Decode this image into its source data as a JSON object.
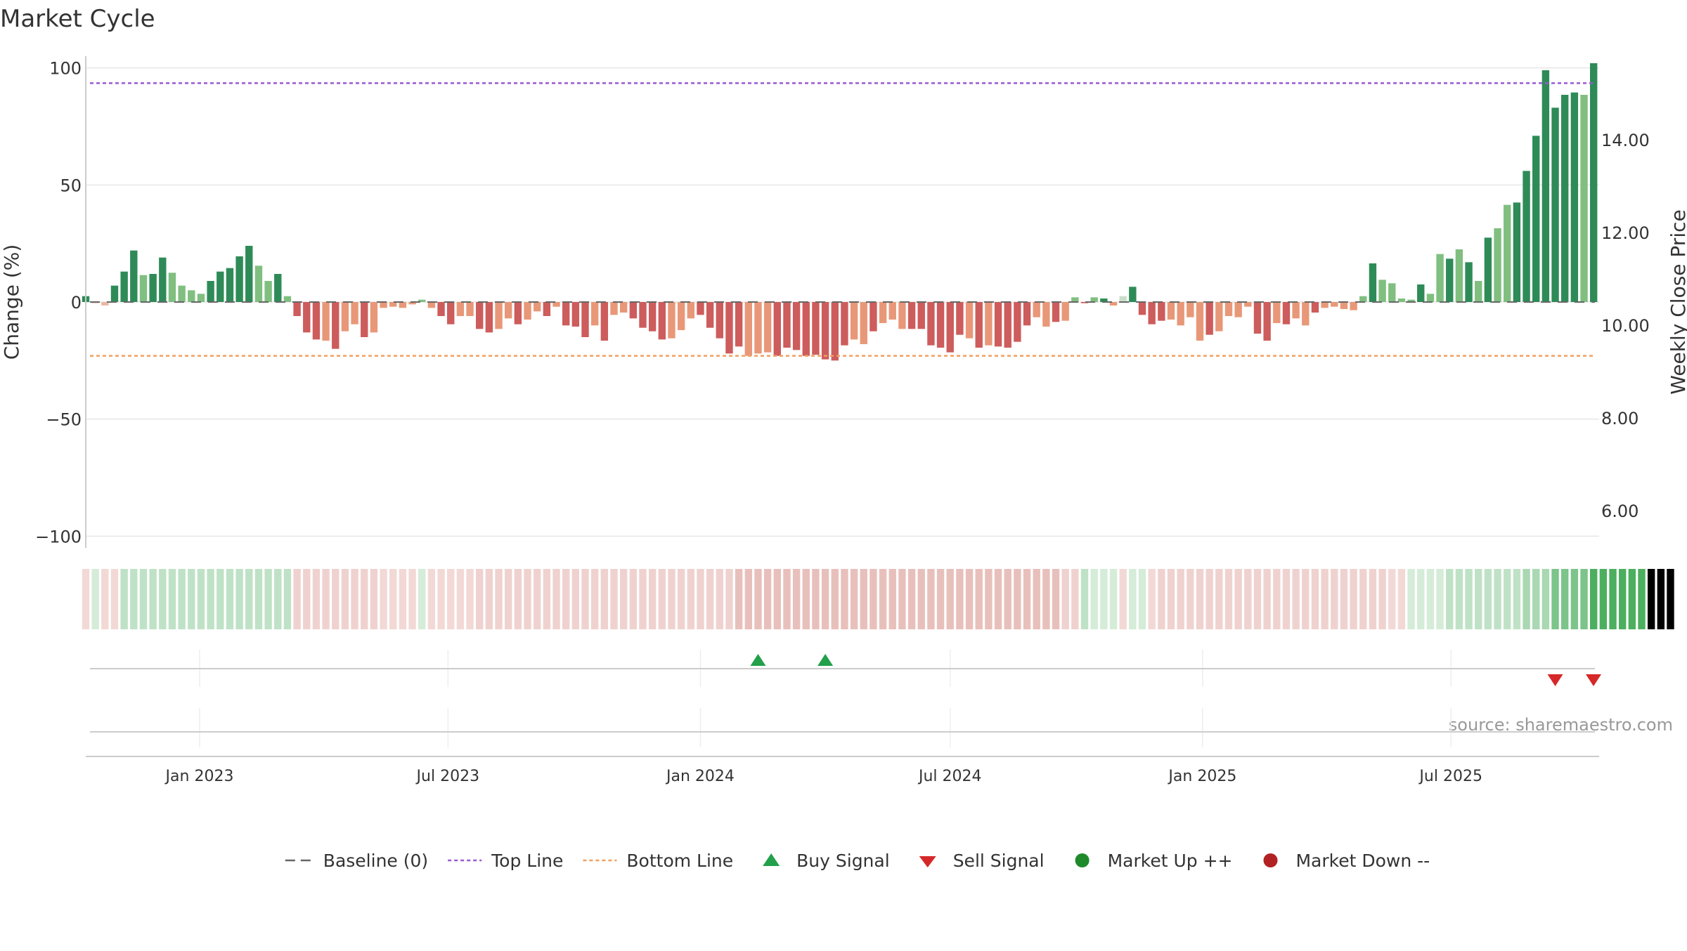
{
  "chart_data": {
    "type": "bar",
    "title": "Market Cycle",
    "ylabel": "Change (%)",
    "y2label": "Weekly Close Price",
    "ylim": [
      -105,
      105
    ],
    "yticks": [
      100,
      50,
      0,
      -50,
      -100
    ],
    "ytick_labels": [
      "100",
      "50",
      "0",
      "−50",
      "−100"
    ],
    "y2lim": [
      5.2,
      15.8
    ],
    "y2ticks": [
      6,
      8,
      10,
      12,
      14
    ],
    "y2tick_labels": [
      "6.00",
      "8.00",
      "10.00",
      "12.00",
      "14.00"
    ],
    "x_start": "2022-10-10",
    "x_end": "2025-10-17",
    "xticks": [
      {
        "date": "2023-01-01",
        "label": "Jan 2023"
      },
      {
        "date": "2023-07-01",
        "label": "Jul 2023"
      },
      {
        "date": "2024-01-01",
        "label": "Jan 2024"
      },
      {
        "date": "2024-07-01",
        "label": "Jul 2024"
      },
      {
        "date": "2025-01-01",
        "label": "Jan 2025"
      },
      {
        "date": "2025-07-01",
        "label": "Jul 2025"
      }
    ],
    "grid": true,
    "top_line": 93.5,
    "bottom_line": -23,
    "baseline": 0,
    "series": [
      {
        "name": "Change",
        "start_date": "2022-10-10",
        "values": [
          2.5,
          -0.5,
          -1.5,
          7,
          13,
          22,
          11.5,
          12,
          19,
          12.5,
          7,
          5,
          3.5,
          9,
          13,
          14.5,
          19.5,
          24,
          15.5,
          9,
          12,
          2.5,
          -6,
          -13,
          -16,
          -16.5,
          -20,
          -12.5,
          -9.5,
          -15,
          -13,
          -2.5,
          -2,
          -2.5,
          -1,
          1,
          -2.5,
          -6,
          -9.5,
          -6,
          -6,
          -11.5,
          -13,
          -11.5,
          -7,
          -9.5,
          -7.5,
          -4,
          -6,
          -2,
          -10,
          -10.5,
          -15,
          -10,
          -16.5,
          -5.5,
          -4.5,
          -7,
          -11,
          -12.5,
          -16,
          -15.5,
          -12,
          -7,
          -5.5,
          -11,
          -15.5,
          -22,
          -19,
          -23,
          -22,
          -21.5,
          -23,
          -19.5,
          -20.5,
          -23,
          -22.5,
          -24.5,
          -25,
          -18.5,
          -16,
          -18,
          -12.5,
          -9,
          -7.5,
          -11.5,
          -11.5,
          -11.5,
          -18.5,
          -19.5,
          -21.5,
          -14,
          -15.5,
          -19.5,
          -18.5,
          -19,
          -19.5,
          -17,
          -10,
          -6.5,
          -10.5,
          -8.5,
          -8,
          2,
          -0.5,
          2,
          1.5,
          -1.5,
          2.5,
          6.5,
          -5.5,
          -9.5,
          -8,
          -7.5,
          -10,
          -6.5,
          -16.5,
          -14,
          -12.5,
          -6,
          -6.5,
          -2,
          -13.5,
          -16.5,
          -9,
          -9.5,
          -7,
          -10,
          -4.5,
          -2.5,
          -2,
          -3,
          -3.5,
          2.5,
          16.5,
          9.5,
          8,
          1.5,
          1,
          7.5,
          3.5,
          20.5,
          18.5,
          22.5,
          17,
          9,
          27.5,
          31.5,
          41.5,
          42.5,
          56,
          71,
          99,
          83,
          88.5,
          89.5,
          88.5,
          102
        ],
        "intensity": [
          2,
          0,
          0,
          2,
          2,
          2,
          1,
          2,
          2,
          1,
          1,
          1,
          1,
          2,
          2,
          2,
          2,
          2,
          1,
          1,
          2,
          1,
          2,
          2,
          2,
          1,
          2,
          1,
          1,
          2,
          1,
          1,
          1,
          1,
          1,
          1,
          1,
          2,
          2,
          1,
          1,
          2,
          2,
          1,
          1,
          2,
          1,
          1,
          2,
          1,
          2,
          2,
          2,
          1,
          2,
          1,
          1,
          2,
          2,
          2,
          2,
          1,
          1,
          1,
          2,
          2,
          2,
          2,
          2,
          1,
          1,
          1,
          2,
          2,
          2,
          2,
          2,
          2,
          2,
          2,
          1,
          1,
          2,
          1,
          1,
          1,
          2,
          2,
          2,
          2,
          2,
          2,
          1,
          2,
          1,
          2,
          2,
          2,
          2,
          1,
          1,
          2,
          1,
          1,
          2,
          1,
          2,
          1,
          0,
          2,
          2,
          2,
          2,
          1,
          1,
          1,
          1,
          2,
          1,
          1,
          1,
          1,
          2,
          2,
          1,
          2,
          1,
          1,
          2,
          1,
          1,
          1,
          1,
          1,
          2,
          1,
          1,
          1,
          1,
          2,
          1,
          1,
          2,
          1,
          2,
          1,
          2,
          1,
          1,
          2,
          2,
          2,
          2,
          2,
          2,
          2,
          1,
          2,
          2,
          1,
          2
        ]
      }
    ],
    "regime_band": {
      "values": [
        -1,
        1,
        -1,
        -1,
        1,
        1,
        1,
        1,
        1,
        1,
        1,
        1,
        1,
        1,
        1,
        1,
        1,
        1,
        1,
        1,
        1,
        1,
        -1,
        -1,
        -1,
        -1,
        -1,
        -1,
        -1,
        -1,
        -1,
        -1,
        -1,
        -1,
        -1,
        1,
        -1,
        -1,
        -1,
        -1,
        -1,
        -1,
        -1,
        -1,
        -1,
        -1,
        -1,
        -1,
        -1,
        -1,
        -1,
        -1,
        -1,
        -1,
        -1,
        -1,
        -1,
        -1,
        -1,
        -1,
        -1,
        -1,
        -1,
        -1,
        -1,
        -1,
        -1,
        -1,
        -1,
        -1,
        -1,
        -1,
        -1,
        -1,
        -1,
        -1,
        -1,
        -1,
        -1,
        -1,
        -1,
        -1,
        -1,
        -1,
        -1,
        -1,
        -1,
        -1,
        -1,
        -1,
        -1,
        -1,
        -1,
        -1,
        -1,
        -1,
        -1,
        -1,
        -1,
        -1,
        -1,
        -1,
        -1,
        -1,
        1,
        1,
        1,
        1,
        -1,
        1,
        1,
        -1,
        -1,
        -1,
        -1,
        -1,
        -1,
        -1,
        -1,
        -1,
        -1,
        -1,
        -1,
        -1,
        -1,
        -1,
        -1,
        -1,
        -1,
        -1,
        -1,
        -1,
        -1,
        -1,
        -1,
        -1,
        -1,
        -1,
        1,
        1,
        1,
        1,
        1,
        1,
        1,
        1,
        1,
        1,
        1,
        1,
        1,
        1,
        1,
        1,
        1,
        1,
        1,
        1,
        1,
        1,
        1,
        1,
        1,
        1,
        1,
        1
      ],
      "strength": [
        1,
        1,
        1,
        1,
        2,
        2,
        2,
        2,
        2,
        2,
        2,
        2,
        2,
        2,
        2,
        2,
        2,
        2,
        2,
        2,
        2,
        2,
        2,
        2,
        2,
        2,
        2,
        2,
        2,
        2,
        2,
        1,
        1,
        1,
        1,
        1,
        1,
        1,
        1,
        1,
        1,
        2,
        2,
        2,
        2,
        2,
        2,
        2,
        2,
        2,
        2,
        2,
        2,
        2,
        2,
        2,
        2,
        2,
        2,
        2,
        2,
        2,
        2,
        2,
        2,
        2,
        2,
        2,
        3,
        3,
        3,
        3,
        3,
        3,
        3,
        3,
        3,
        3,
        3,
        3,
        3,
        3,
        3,
        3,
        3,
        3,
        3,
        3,
        3,
        3,
        3,
        3,
        3,
        3,
        3,
        3,
        3,
        3,
        3,
        3,
        3,
        3,
        2,
        2,
        2,
        1,
        1,
        1,
        1,
        1,
        1,
        1,
        2,
        2,
        2,
        2,
        2,
        2,
        2,
        2,
        2,
        2,
        2,
        2,
        2,
        2,
        2,
        2,
        2,
        2,
        2,
        2,
        2,
        2,
        2,
        2,
        1,
        1,
        1,
        1,
        1,
        1,
        2,
        2,
        2,
        2,
        2,
        2,
        2,
        2,
        3,
        3,
        3,
        4,
        4,
        4,
        4,
        5,
        5,
        5,
        5,
        5,
        5
      ]
    },
    "buy_signals": [
      "2024-02-12",
      "2024-04-01"
    ],
    "sell_signals": [
      "2025-09-15",
      "2025-10-13"
    ],
    "source": "source: sharemaestro.com",
    "legend": {
      "placement": "bottom",
      "items": [
        {
          "label": "Baseline (0)",
          "marker": "dashed-line",
          "color": "#666666"
        },
        {
          "label": "Top Line",
          "marker": "dotted-line",
          "color": "#9b59d0"
        },
        {
          "label": "Bottom Line",
          "marker": "dotted-line",
          "color": "#f0a060"
        },
        {
          "label": "Buy Signal",
          "marker": "triangle-up",
          "color": "#22a04a"
        },
        {
          "label": "Sell Signal",
          "marker": "triangle-down",
          "color": "#d62828"
        },
        {
          "label": "Market Up ++",
          "marker": "circle",
          "color": "#1f8a2a"
        },
        {
          "label": "Market Down --",
          "marker": "circle",
          "color": "#b22222"
        }
      ]
    },
    "colors": {
      "pos": [
        "#c9dec9",
        "#80bf80",
        "#2e8b57"
      ],
      "neg": [
        "#e9b9a9",
        "#e89878",
        "#cd5c5c"
      ],
      "band_pos": [
        "#d4ecd8",
        "#bfe2c6",
        "#a9d8b2",
        "#7cc48a",
        "#4caf5f"
      ],
      "band_neg": [
        "#f2d9d6",
        "#efd2cf",
        "#e8c0bb"
      ],
      "top_line": "#9b59d0",
      "bottom_line": "#f0a060",
      "grid": "#e6e6e6"
    }
  }
}
